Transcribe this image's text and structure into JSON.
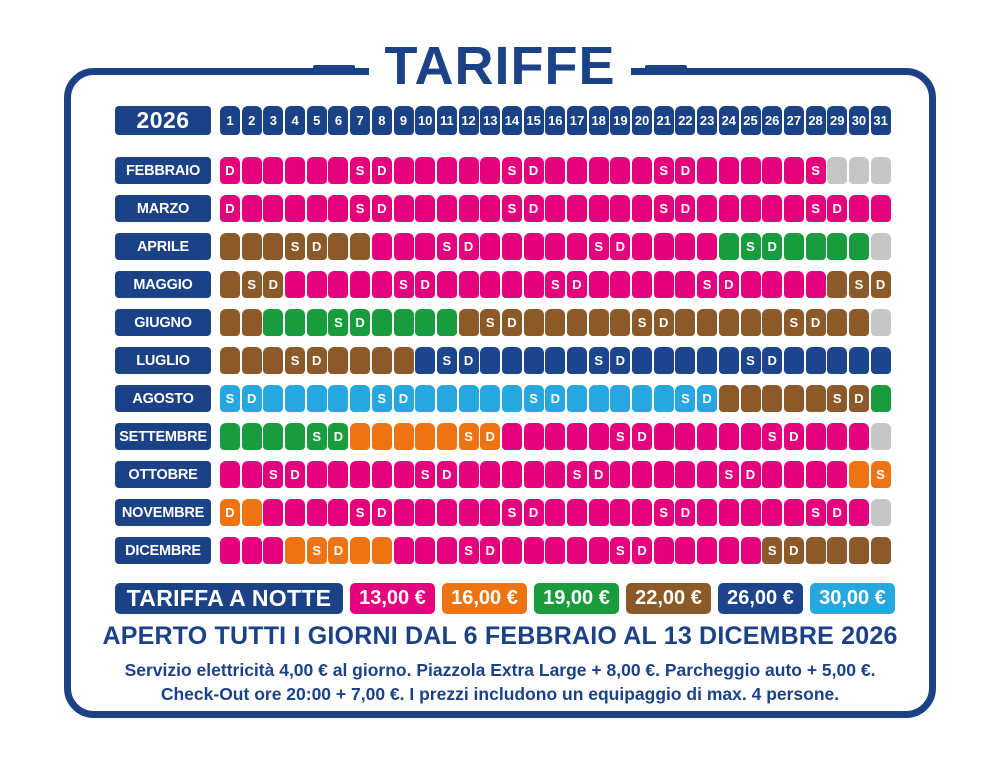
{
  "title": "TARIFFE",
  "year": "2026",
  "day_numbers": [
    "1",
    "2",
    "3",
    "4",
    "5",
    "6",
    "7",
    "8",
    "9",
    "10",
    "11",
    "12",
    "13",
    "14",
    "15",
    "16",
    "17",
    "18",
    "19",
    "20",
    "21",
    "22",
    "23",
    "24",
    "25",
    "26",
    "27",
    "28",
    "29",
    "30",
    "31"
  ],
  "colors": {
    "p": "#E5007E",
    "o": "#EE7312",
    "g": "#189C3E",
    "b": "#8C5928",
    "n": "#1C458E",
    "l": "#27A7E0",
    "x": "#C6C6C6",
    "navy": "#1B4287"
  },
  "weekend_letters": {
    "S": "S",
    "D": "D"
  },
  "months": [
    {
      "name": "FEBBRAIO",
      "cells": [
        "pD",
        "p",
        "p",
        "p",
        "p",
        "p",
        "pS",
        "pD",
        "p",
        "p",
        "p",
        "p",
        "p",
        "pS",
        "pD",
        "p",
        "p",
        "p",
        "p",
        "p",
        "pS",
        "pD",
        "p",
        "p",
        "p",
        "p",
        "p",
        "pS",
        "x",
        "x",
        "x"
      ]
    },
    {
      "name": "MARZO",
      "cells": [
        "pD",
        "p",
        "p",
        "p",
        "p",
        "p",
        "pS",
        "pD",
        "p",
        "p",
        "p",
        "p",
        "p",
        "pS",
        "pD",
        "p",
        "p",
        "p",
        "p",
        "p",
        "pS",
        "pD",
        "p",
        "p",
        "p",
        "p",
        "p",
        "pS",
        "pD",
        "p",
        "p"
      ]
    },
    {
      "name": "APRILE",
      "cells": [
        "b",
        "b",
        "b",
        "bS",
        "bD",
        "b",
        "b",
        "p",
        "p",
        "p",
        "pS",
        "pD",
        "p",
        "p",
        "p",
        "p",
        "p",
        "pS",
        "pD",
        "p",
        "p",
        "p",
        "p",
        "g",
        "gS",
        "gD",
        "g",
        "g",
        "g",
        "g",
        "x"
      ]
    },
    {
      "name": "MAGGIO",
      "cells": [
        "b",
        "bS",
        "bD",
        "p",
        "p",
        "p",
        "p",
        "p",
        "pS",
        "pD",
        "p",
        "p",
        "p",
        "p",
        "p",
        "pS",
        "pD",
        "p",
        "p",
        "p",
        "p",
        "p",
        "pS",
        "pD",
        "p",
        "p",
        "p",
        "p",
        "b",
        "bS",
        "bD"
      ]
    },
    {
      "name": "GIUGNO",
      "cells": [
        "b",
        "b",
        "g",
        "g",
        "g",
        "gS",
        "gD",
        "g",
        "g",
        "g",
        "g",
        "b",
        "bS",
        "bD",
        "b",
        "b",
        "b",
        "b",
        "b",
        "bS",
        "bD",
        "b",
        "b",
        "b",
        "b",
        "b",
        "bS",
        "bD",
        "b",
        "b",
        "x"
      ]
    },
    {
      "name": "LUGLIO",
      "cells": [
        "b",
        "b",
        "b",
        "bS",
        "bD",
        "b",
        "b",
        "b",
        "b",
        "n",
        "nS",
        "nD",
        "n",
        "n",
        "n",
        "n",
        "n",
        "nS",
        "nD",
        "n",
        "n",
        "n",
        "n",
        "n",
        "nS",
        "nD",
        "n",
        "n",
        "n",
        "n",
        "n"
      ]
    },
    {
      "name": "AGOSTO",
      "cells": [
        "lS",
        "lD",
        "l",
        "l",
        "l",
        "l",
        "l",
        "lS",
        "lD",
        "l",
        "l",
        "l",
        "l",
        "l",
        "lS",
        "lD",
        "l",
        "l",
        "l",
        "l",
        "l",
        "lS",
        "lD",
        "b",
        "b",
        "b",
        "b",
        "b",
        "bS",
        "bD",
        "g"
      ]
    },
    {
      "name": "SETTEMBRE",
      "cells": [
        "g",
        "g",
        "g",
        "g",
        "gS",
        "gD",
        "o",
        "o",
        "o",
        "o",
        "o",
        "oS",
        "oD",
        "p",
        "p",
        "p",
        "p",
        "p",
        "pS",
        "pD",
        "p",
        "p",
        "p",
        "p",
        "p",
        "pS",
        "pD",
        "p",
        "p",
        "p",
        "x"
      ]
    },
    {
      "name": "OTTOBRE",
      "cells": [
        "p",
        "p",
        "pS",
        "pD",
        "p",
        "p",
        "p",
        "p",
        "p",
        "pS",
        "pD",
        "p",
        "p",
        "p",
        "p",
        "p",
        "pS",
        "pD",
        "p",
        "p",
        "p",
        "p",
        "p",
        "pS",
        "pD",
        "p",
        "p",
        "p",
        "p",
        "o",
        "oS"
      ]
    },
    {
      "name": "NOVEMBRE",
      "cells": [
        "oD",
        "o",
        "p",
        "p",
        "p",
        "p",
        "pS",
        "pD",
        "p",
        "p",
        "p",
        "p",
        "p",
        "pS",
        "pD",
        "p",
        "p",
        "p",
        "p",
        "p",
        "pS",
        "pD",
        "p",
        "p",
        "p",
        "p",
        "p",
        "pS",
        "pD",
        "p",
        "x"
      ]
    },
    {
      "name": "DICEMBRE",
      "cells": [
        "p",
        "p",
        "p",
        "o",
        "oS",
        "oD",
        "o",
        "o",
        "p",
        "p",
        "p",
        "pS",
        "pD",
        "p",
        "p",
        "p",
        "p",
        "p",
        "pS",
        "pD",
        "p",
        "p",
        "p",
        "p",
        "p",
        "bS",
        "bD",
        "b",
        "b",
        "b",
        "b"
      ]
    }
  ],
  "legend": {
    "label": "TARIFFA A NOTTE",
    "items": [
      {
        "price": "13,00 €",
        "color": "#E5007E"
      },
      {
        "price": "16,00 €",
        "color": "#EE7312"
      },
      {
        "price": "19,00 €",
        "color": "#189C3E"
      },
      {
        "price": "22,00 €",
        "color": "#8C5928"
      },
      {
        "price": "26,00 €",
        "color": "#1C458E"
      },
      {
        "price": "30,00 €",
        "color": "#27A7E0"
      }
    ]
  },
  "footer": {
    "line1": "APERTO TUTTI I GIORNI DAL 6 FEBBRAIO AL 13 DICEMBRE 2026",
    "line2": "Servizio elettricità 4,00 € al giorno. Piazzola Extra Large + 8,00 €. Parcheggio auto + 5,00 €.",
    "line3": "Check-Out ore 20:00 + 7,00 €. I prezzi includono un equipaggio di max. 4 persone."
  }
}
